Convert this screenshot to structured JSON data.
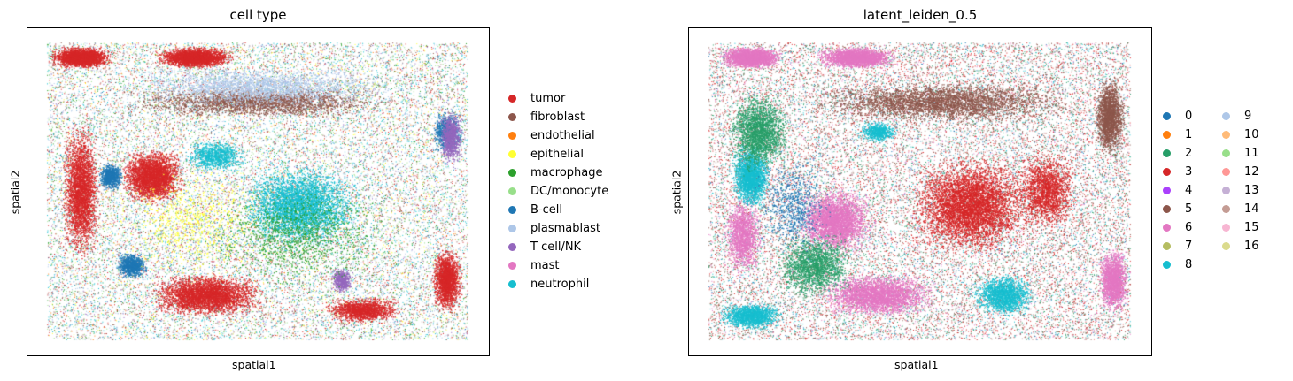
{
  "chart_data": [
    {
      "type": "scatter",
      "title": "cell type",
      "xlabel": "spatial1",
      "ylabel": "spatial2",
      "legend_location": "right",
      "categories": [
        {
          "label": "tumor",
          "color": "#d62728"
        },
        {
          "label": "fibroblast",
          "color": "#8c564b"
        },
        {
          "label": "endothelial",
          "color": "#ff7f0e"
        },
        {
          "label": "epithelial",
          "color": "#ffff33"
        },
        {
          "label": "macrophage",
          "color": "#2ca02c"
        },
        {
          "label": "DC/monocyte",
          "color": "#98df8a"
        },
        {
          "label": "B-cell",
          "color": "#1f77b4"
        },
        {
          "label": "plasmablast",
          "color": "#aec7e8"
        },
        {
          "label": "T cell/NK",
          "color": "#9467bd"
        },
        {
          "label": "mast",
          "color": "#e377c2"
        },
        {
          "label": "neutrophil",
          "color": "#17becf"
        }
      ]
    },
    {
      "type": "scatter",
      "title": "latent_leiden_0.5",
      "xlabel": "spatial1",
      "ylabel": "spatial2",
      "legend_location": "right",
      "legend_columns": 2,
      "categories": [
        {
          "label": "0",
          "color": "#1f77b4"
        },
        {
          "label": "1",
          "color": "#ff7f0e"
        },
        {
          "label": "2",
          "color": "#279e68"
        },
        {
          "label": "3",
          "color": "#d62728"
        },
        {
          "label": "4",
          "color": "#aa40fc"
        },
        {
          "label": "5",
          "color": "#8c564b"
        },
        {
          "label": "6",
          "color": "#e377c2"
        },
        {
          "label": "7",
          "color": "#b5bd61"
        },
        {
          "label": "8",
          "color": "#17becf"
        },
        {
          "label": "9",
          "color": "#aec7e8"
        },
        {
          "label": "10",
          "color": "#ffbb78"
        },
        {
          "label": "11",
          "color": "#98df8a"
        },
        {
          "label": "12",
          "color": "#ff9896"
        },
        {
          "label": "13",
          "color": "#c5b0d5"
        },
        {
          "label": "14",
          "color": "#c49c94"
        },
        {
          "label": "15",
          "color": "#f7b6d2"
        },
        {
          "label": "16",
          "color": "#dbdb8d"
        }
      ]
    }
  ]
}
